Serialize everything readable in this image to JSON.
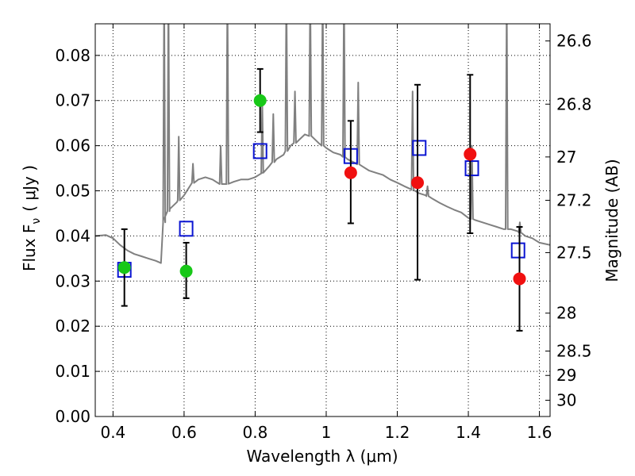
{
  "chart_data": {
    "type": "scatter",
    "xlabel": "Wavelength  λ (μm)",
    "ylabel": "Flux  F",
    "ylabel_subscript": "ν",
    "ylabel_unit": "( μJy )",
    "ylabel_right": "Magnitude (AB)",
    "xlim": [
      0.35,
      1.63
    ],
    "ylim": [
      0.0,
      0.087
    ],
    "grid": true,
    "grid_style": "dotted",
    "x_ticks": [
      0.4,
      0.6,
      0.8,
      1.0,
      1.2,
      1.4,
      1.6
    ],
    "x_tick_labels": [
      "0.4",
      "0.6",
      "0.8",
      "1",
      "1.2",
      "1.4",
      "1.6"
    ],
    "y_ticks": [
      0.0,
      0.01,
      0.02,
      0.03,
      0.04,
      0.05,
      0.06,
      0.07,
      0.08
    ],
    "y_tick_labels": [
      "0.00",
      "0.01",
      "0.02",
      "0.03",
      "0.04",
      "0.05",
      "0.06",
      "0.07",
      "0.08"
    ],
    "right_ticks": [
      {
        "label": "26.6",
        "flux": 0.0832
      },
      {
        "label": "26.8",
        "flux": 0.0692
      },
      {
        "label": "27",
        "flux": 0.0575
      },
      {
        "label": "27.2",
        "flux": 0.0479
      },
      {
        "label": "27.5",
        "flux": 0.0363
      },
      {
        "label": "28",
        "flux": 0.0229
      },
      {
        "label": "28.5",
        "flux": 0.0145
      },
      {
        "label": "29",
        "flux": 0.0091
      },
      {
        "label": "30",
        "flux": 0.0036
      }
    ],
    "colors": {
      "model": "#808080",
      "green": "#18c818",
      "red": "#f01010",
      "blue": "#0a14d2",
      "errorbar": "#000000"
    },
    "series": [
      {
        "kind": "model-spectrum",
        "x": [
          0.35,
          0.38,
          0.4,
          0.42,
          0.44,
          0.46,
          0.48,
          0.5,
          0.52,
          0.535,
          0.545,
          0.56,
          0.58,
          0.6,
          0.62,
          0.64,
          0.66,
          0.68,
          0.7,
          0.72,
          0.74,
          0.76,
          0.78,
          0.8,
          0.82,
          0.84,
          0.86,
          0.88,
          0.9,
          0.92,
          0.94,
          0.96,
          0.98,
          1.0,
          1.02,
          1.04,
          1.06,
          1.08,
          1.1,
          1.12,
          1.14,
          1.16,
          1.18,
          1.2,
          1.22,
          1.24,
          1.26,
          1.28,
          1.3,
          1.32,
          1.34,
          1.36,
          1.38,
          1.4,
          1.42,
          1.44,
          1.46,
          1.48,
          1.5,
          1.52,
          1.54,
          1.56,
          1.58,
          1.6,
          1.63
        ],
        "y": [
          0.04,
          0.0402,
          0.0395,
          0.038,
          0.0368,
          0.036,
          0.0355,
          0.035,
          0.0345,
          0.034,
          0.044,
          0.046,
          0.0475,
          0.049,
          0.0515,
          0.0525,
          0.053,
          0.0525,
          0.0515,
          0.0515,
          0.052,
          0.0525,
          0.0525,
          0.053,
          0.054,
          0.0555,
          0.057,
          0.058,
          0.06,
          0.061,
          0.0625,
          0.062,
          0.0605,
          0.0595,
          0.0585,
          0.058,
          0.057,
          0.0562,
          0.0555,
          0.0545,
          0.054,
          0.0535,
          0.0525,
          0.0518,
          0.051,
          0.0503,
          0.0495,
          0.049,
          0.0482,
          0.0473,
          0.0465,
          0.0458,
          0.0452,
          0.044,
          0.0435,
          0.043,
          0.0425,
          0.042,
          0.0415,
          0.0415,
          0.041,
          0.04,
          0.0395,
          0.0385,
          0.038
        ],
        "emission_lines": [
          {
            "x": 0.544,
            "peak": 0.095
          },
          {
            "x": 0.556,
            "peak": 0.095
          },
          {
            "x": 0.585,
            "peak": 0.062
          },
          {
            "x": 0.625,
            "peak": 0.056
          },
          {
            "x": 0.703,
            "peak": 0.06
          },
          {
            "x": 0.722,
            "peak": 0.095
          },
          {
            "x": 0.82,
            "peak": 0.07
          },
          {
            "x": 0.851,
            "peak": 0.067
          },
          {
            "x": 0.888,
            "peak": 0.095
          },
          {
            "x": 0.912,
            "peak": 0.072
          },
          {
            "x": 0.955,
            "peak": 0.095
          },
          {
            "x": 0.99,
            "peak": 0.095
          },
          {
            "x": 1.05,
            "peak": 0.095
          },
          {
            "x": 1.09,
            "peak": 0.074
          },
          {
            "x": 1.243,
            "peak": 0.072
          },
          {
            "x": 1.285,
            "peak": 0.051
          },
          {
            "x": 1.41,
            "peak": 0.06
          },
          {
            "x": 1.508,
            "peak": 0.095
          },
          {
            "x": 1.545,
            "peak": 0.043
          }
        ]
      },
      {
        "kind": "observed-green",
        "points": [
          {
            "x": 0.432,
            "y": 0.033,
            "err_lo": 0.0245,
            "err_hi": 0.0415
          },
          {
            "x": 0.606,
            "y": 0.0322,
            "err_lo": 0.0262,
            "err_hi": 0.0385
          },
          {
            "x": 0.814,
            "y": 0.07,
            "err_lo": 0.063,
            "err_hi": 0.077
          }
        ]
      },
      {
        "kind": "observed-red",
        "points": [
          {
            "x": 1.069,
            "y": 0.054,
            "err_lo": 0.0428,
            "err_hi": 0.0655
          },
          {
            "x": 1.257,
            "y": 0.0518,
            "err_lo": 0.0303,
            "err_hi": 0.0735
          },
          {
            "x": 1.405,
            "y": 0.0581,
            "err_lo": 0.0406,
            "err_hi": 0.0757
          },
          {
            "x": 1.544,
            "y": 0.0305,
            "err_lo": 0.019,
            "err_hi": 0.042
          }
        ]
      },
      {
        "kind": "model-photometry",
        "points": [
          {
            "x": 0.432,
            "y": 0.0325
          },
          {
            "x": 0.606,
            "y": 0.0416
          },
          {
            "x": 0.814,
            "y": 0.0588
          },
          {
            "x": 1.069,
            "y": 0.0577
          },
          {
            "x": 1.262,
            "y": 0.0595
          },
          {
            "x": 1.41,
            "y": 0.055
          },
          {
            "x": 1.54,
            "y": 0.0368
          }
        ]
      }
    ]
  }
}
